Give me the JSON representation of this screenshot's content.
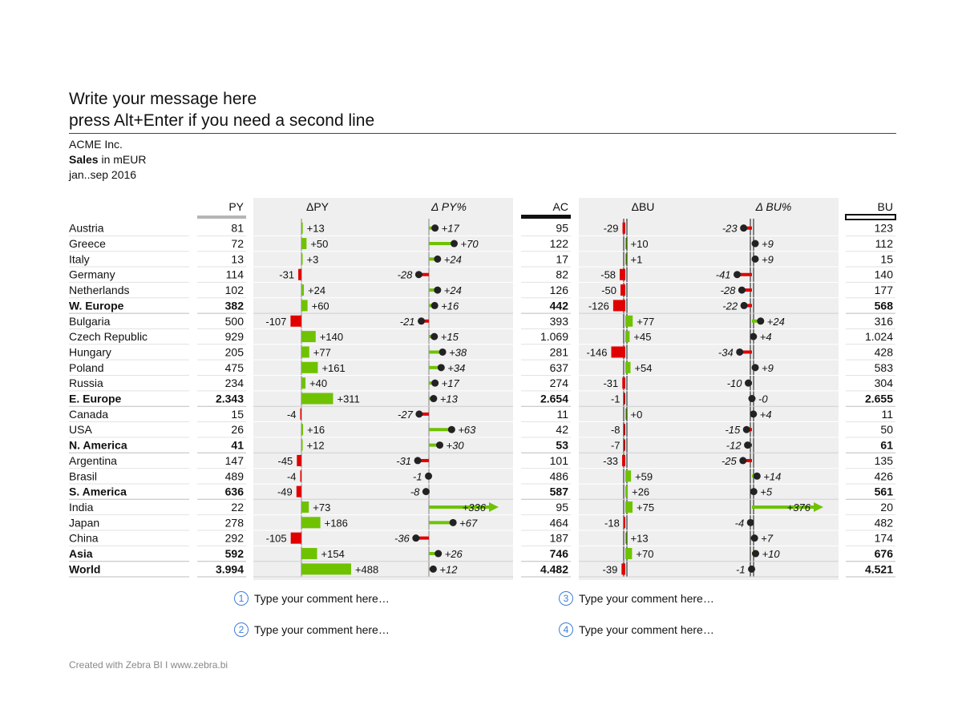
{
  "title": {
    "line1": "Write your message here",
    "line2": "press Alt+Enter if you need a second line"
  },
  "subtitle": {
    "company": "ACME Inc.",
    "measure": "Sales",
    "unit": "in mEUR",
    "period": "jan..sep 2016"
  },
  "comments": [
    {
      "num": "1",
      "text": "Type your comment here…"
    },
    {
      "num": "2",
      "text": "Type your comment here…"
    },
    {
      "num": "3",
      "text": "Type your comment here…"
    },
    {
      "num": "4",
      "text": "Type your comment here…"
    }
  ],
  "footer": "Created with Zebra BI  I  www.zebra.bi",
  "colors": {
    "positive": "#6fc200",
    "negative": "#e00000",
    "panel": "#efefef",
    "dot": "#222222"
  },
  "chart_data": {
    "type": "table",
    "columns": [
      "PY",
      "ΔPY",
      "Δ PY%",
      "AC",
      "ΔBU",
      "Δ BU%",
      "BU"
    ],
    "rows": [
      {
        "name": "Austria",
        "bold": false,
        "py": "81",
        "dpy": "+13",
        "dpypct": "+17",
        "ac": "95",
        "dbu": "-29",
        "dbupct": "-23",
        "bu": "123"
      },
      {
        "name": "Greece",
        "bold": false,
        "py": "72",
        "dpy": "+50",
        "dpypct": "+70",
        "ac": "122",
        "dbu": "+10",
        "dbupct": "+9",
        "bu": "112"
      },
      {
        "name": "Italy",
        "bold": false,
        "py": "13",
        "dpy": "+3",
        "dpypct": "+24",
        "ac": "17",
        "dbu": "+1",
        "dbupct": "+9",
        "bu": "15"
      },
      {
        "name": "Germany",
        "bold": false,
        "py": "114",
        "dpy": "-31",
        "dpypct": "-28",
        "ac": "82",
        "dbu": "-58",
        "dbupct": "-41",
        "bu": "140"
      },
      {
        "name": "Netherlands",
        "bold": false,
        "py": "102",
        "dpy": "+24",
        "dpypct": "+24",
        "ac": "126",
        "dbu": "-50",
        "dbupct": "-28",
        "bu": "177"
      },
      {
        "name": "W. Europe",
        "bold": true,
        "py": "382",
        "dpy": "+60",
        "dpypct": "+16",
        "ac": "442",
        "dbu": "-126",
        "dbupct": "-22",
        "bu": "568"
      },
      {
        "name": "Bulgaria",
        "bold": false,
        "py": "500",
        "dpy": "-107",
        "dpypct": "-21",
        "ac": "393",
        "dbu": "+77",
        "dbupct": "+24",
        "bu": "316"
      },
      {
        "name": "Czech Republic",
        "bold": false,
        "py": "929",
        "dpy": "+140",
        "dpypct": "+15",
        "ac": "1.069",
        "dbu": "+45",
        "dbupct": "+4",
        "bu": "1.024"
      },
      {
        "name": "Hungary",
        "bold": false,
        "py": "205",
        "dpy": "+77",
        "dpypct": "+38",
        "ac": "281",
        "dbu": "-146",
        "dbupct": "-34",
        "bu": "428"
      },
      {
        "name": "Poland",
        "bold": false,
        "py": "475",
        "dpy": "+161",
        "dpypct": "+34",
        "ac": "637",
        "dbu": "+54",
        "dbupct": "+9",
        "bu": "583"
      },
      {
        "name": "Russia",
        "bold": false,
        "py": "234",
        "dpy": "+40",
        "dpypct": "+17",
        "ac": "274",
        "dbu": "-31",
        "dbupct": "-10",
        "bu": "304"
      },
      {
        "name": "E. Europe",
        "bold": true,
        "py": "2.343",
        "dpy": "+311",
        "dpypct": "+13",
        "ac": "2.654",
        "dbu": "-1",
        "dbupct": "-0",
        "bu": "2.655"
      },
      {
        "name": "Canada",
        "bold": false,
        "py": "15",
        "dpy": "-4",
        "dpypct": "-27",
        "ac": "11",
        "dbu": "+0",
        "dbupct": "+4",
        "bu": "11"
      },
      {
        "name": "USA",
        "bold": false,
        "py": "26",
        "dpy": "+16",
        "dpypct": "+63",
        "ac": "42",
        "dbu": "-8",
        "dbupct": "-15",
        "bu": "50"
      },
      {
        "name": "N. America",
        "bold": true,
        "py": "41",
        "dpy": "+12",
        "dpypct": "+30",
        "ac": "53",
        "dbu": "-7",
        "dbupct": "-12",
        "bu": "61"
      },
      {
        "name": "Argentina",
        "bold": false,
        "py": "147",
        "dpy": "-45",
        "dpypct": "-31",
        "ac": "101",
        "dbu": "-33",
        "dbupct": "-25",
        "bu": "135"
      },
      {
        "name": "Brasil",
        "bold": false,
        "py": "489",
        "dpy": "-4",
        "dpypct": "-1",
        "ac": "486",
        "dbu": "+59",
        "dbupct": "+14",
        "bu": "426"
      },
      {
        "name": "S. America",
        "bold": true,
        "py": "636",
        "dpy": "-49",
        "dpypct": "-8",
        "ac": "587",
        "dbu": "+26",
        "dbupct": "+5",
        "bu": "561"
      },
      {
        "name": "India",
        "bold": false,
        "py": "22",
        "dpy": "+73",
        "dpypct": "+336",
        "ac": "95",
        "dbu": "+75",
        "dbupct": "+376",
        "bu": "20"
      },
      {
        "name": "Japan",
        "bold": false,
        "py": "278",
        "dpy": "+186",
        "dpypct": "+67",
        "ac": "464",
        "dbu": "-18",
        "dbupct": "-4",
        "bu": "482"
      },
      {
        "name": "China",
        "bold": false,
        "py": "292",
        "dpy": "-105",
        "dpypct": "-36",
        "ac": "187",
        "dbu": "+13",
        "dbupct": "+7",
        "bu": "174"
      },
      {
        "name": "Asia",
        "bold": true,
        "py": "592",
        "dpy": "+154",
        "dpypct": "+26",
        "ac": "746",
        "dbu": "+70",
        "dbupct": "+10",
        "bu": "676"
      },
      {
        "name": "World",
        "bold": true,
        "py": "3.994",
        "dpy": "+488",
        "dpypct": "+12",
        "ac": "4.482",
        "dbu": "-39",
        "dbupct": "-1",
        "bu": "4.521"
      }
    ]
  }
}
